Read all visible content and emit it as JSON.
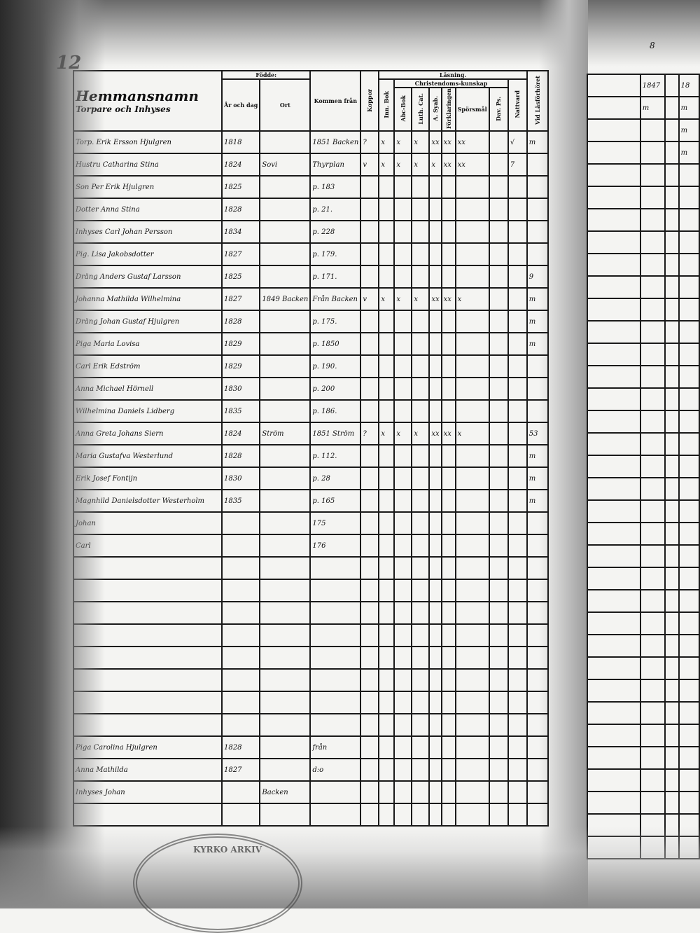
{
  "page": {
    "number": "12",
    "corner_note": "8"
  },
  "header": {
    "title": "Hemmansnamn",
    "subtitle": "Torpare och Inhyses",
    "born_group": "Födde:",
    "born_date": "År och dag",
    "born_place": "Ort",
    "came_from": "Kommen från",
    "smallpox": "Koppor",
    "reading_group": "Läsning.",
    "sub_group": "Christendoms-kunskap",
    "innan_bok": "Inn. Bok",
    "abc": "Abc-Bok",
    "luth": "Luth. Cat.",
    "a_syab": "A. Syab.",
    "forklaring": "Förklaringen",
    "sporsmal": "Spörsmål",
    "dav_ps": "Dav. Ps.",
    "nattvard": "Nattvard",
    "lasforhor": "Vid Läsförhöret"
  },
  "rows": [
    {
      "name": "Torp. Erik Ersson Hjulgren",
      "date": "1818",
      "place": "",
      "from": "1851 Backen",
      "marks": [
        "?",
        "x",
        "x",
        "x",
        "xx",
        "xx",
        "xx",
        "",
        "√",
        "m"
      ]
    },
    {
      "name": "Hustru Catharina Stina",
      "date": "1824",
      "place": "Sovi",
      "from": "Thyrplan",
      "marks": [
        "v",
        "x",
        "x",
        "x",
        "x",
        "xx",
        "xx",
        "",
        "7",
        ""
      ]
    },
    {
      "name": "Son Per Erik Hjulgren",
      "date": "1825",
      "place": "",
      "from": "p. 183",
      "marks": []
    },
    {
      "name": "Dotter Anna Stina",
      "date": "1828",
      "place": "",
      "from": "p. 21.",
      "marks": []
    },
    {
      "name": "Inhyses Carl Johan Persson",
      "date": "1834",
      "place": "",
      "from": "p. 228",
      "marks": []
    },
    {
      "name": "Pig. Lisa Jakobsdotter",
      "date": "1827",
      "place": "",
      "from": "p. 179.",
      "marks": []
    },
    {
      "name": "Dräng Anders Gustaf Larsson",
      "date": "1825",
      "place": "",
      "from": "p. 171.",
      "marks": [
        "",
        "",
        "",
        "",
        "",
        "",
        "",
        "",
        "",
        "9"
      ]
    },
    {
      "name": "Johanna Mathilda Wilhelmina",
      "date": "1827",
      "place": "1849 Backen",
      "from": "Från Backen",
      "marks": [
        "v",
        "x",
        "x",
        "x",
        "xx",
        "xx",
        "x",
        "",
        "",
        "m"
      ]
    },
    {
      "name": "Dräng Johan Gustaf Hjulgren",
      "date": "1828",
      "place": "",
      "from": "p. 175.",
      "marks": [
        "",
        "",
        "",
        "",
        "",
        "",
        "",
        "",
        "",
        "m"
      ]
    },
    {
      "name": "Piga Maria Lovisa",
      "date": "1829",
      "place": "",
      "from": "p. 1850",
      "marks": [
        "",
        "",
        "",
        "",
        "",
        "",
        "",
        "",
        "",
        "m"
      ]
    },
    {
      "name": "Carl Erik Edström",
      "date": "1829",
      "place": "",
      "from": "p. 190.",
      "marks": []
    },
    {
      "name": "Anna Michael Hörnell",
      "date": "1830",
      "place": "",
      "from": "p. 200",
      "marks": []
    },
    {
      "name": "Wilhelmina Daniels Lidberg",
      "date": "1835",
      "place": "",
      "from": "p. 186.",
      "marks": []
    },
    {
      "name": "Anna Greta Johans Siern",
      "date": "1824",
      "place": "Ström",
      "from": "1851 Ström",
      "marks": [
        "?",
        "x",
        "x",
        "x",
        "xx",
        "xx",
        "x",
        "",
        "",
        "53"
      ]
    },
    {
      "name": "Maria Gustafva Westerlund",
      "date": "1828",
      "place": "",
      "from": "p. 112.",
      "marks": [
        "",
        "",
        "",
        "",
        "",
        "",
        "",
        "",
        "",
        "m"
      ]
    },
    {
      "name": "Erik Josef Fontijn",
      "date": "1830",
      "place": "",
      "from": "p. 28",
      "marks": [
        "",
        "",
        "",
        "",
        "",
        "",
        "",
        "",
        "",
        "m"
      ]
    },
    {
      "name": "Magnhild Danielsdotter Westerholm",
      "date": "1835",
      "place": "",
      "from": "p. 165",
      "marks": [
        "",
        "",
        "",
        "",
        "",
        "",
        "",
        "",
        "",
        "m"
      ]
    },
    {
      "name": "Johan",
      "date": "",
      "place": "",
      "from": "175",
      "marks": []
    },
    {
      "name": "Carl",
      "date": "",
      "place": "",
      "from": "176",
      "marks": []
    }
  ],
  "lower_rows": [
    {
      "name": "Piga Carolina Hjulgren",
      "date": "1828",
      "place": "",
      "from": "från"
    },
    {
      "name": "Anna Mathilda",
      "date": "1827",
      "place": "",
      "from": "d:o"
    },
    {
      "name": "Inhyses Johan",
      "date": "",
      "place": "Backen",
      "from": ""
    }
  ],
  "right_page": {
    "header": [
      "1847",
      "18"
    ],
    "marks": [
      "m",
      "m",
      "m",
      "m"
    ]
  },
  "seal_text": "KYRKO ARKIV"
}
